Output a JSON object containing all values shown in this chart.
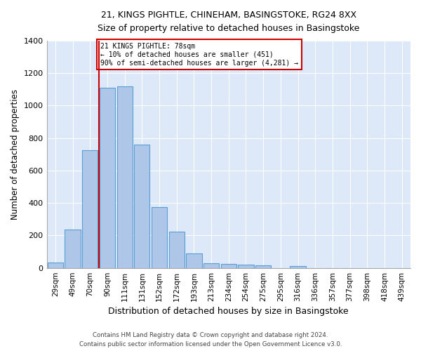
{
  "title1": "21, KINGS PIGHTLE, CHINEHAM, BASINGSTOKE, RG24 8XX",
  "title2": "Size of property relative to detached houses in Basingstoke",
  "xlabel": "Distribution of detached houses by size in Basingstoke",
  "ylabel": "Number of detached properties",
  "bar_labels": [
    "29sqm",
    "49sqm",
    "70sqm",
    "90sqm",
    "111sqm",
    "131sqm",
    "152sqm",
    "172sqm",
    "193sqm",
    "213sqm",
    "234sqm",
    "254sqm",
    "275sqm",
    "295sqm",
    "316sqm",
    "336sqm",
    "357sqm",
    "377sqm",
    "398sqm",
    "418sqm",
    "439sqm"
  ],
  "bar_values": [
    35,
    235,
    725,
    1110,
    1120,
    760,
    375,
    225,
    90,
    30,
    25,
    20,
    15,
    0,
    10,
    0,
    0,
    0,
    0,
    0,
    0
  ],
  "bar_color": "#aec6e8",
  "bar_edge_color": "#5a9fd4",
  "vline_color": "#cc0000",
  "annotation_line1": "21 KINGS PIGHTLE: 78sqm",
  "annotation_line2": "← 10% of detached houses are smaller (451)",
  "annotation_line3": "90% of semi-detached houses are larger (4,281) →",
  "annotation_box_color": "#cc0000",
  "ylim": [
    0,
    1400
  ],
  "yticks": [
    0,
    200,
    400,
    600,
    800,
    1000,
    1200,
    1400
  ],
  "bg_color": "#dde8f8",
  "footer1": "Contains HM Land Registry data © Crown copyright and database right 2024.",
  "footer2": "Contains public sector information licensed under the Open Government Licence v3.0."
}
